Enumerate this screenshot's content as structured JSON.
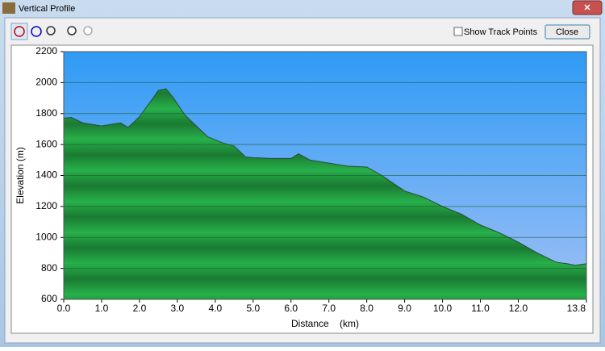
{
  "window": {
    "title": "Vertical Profile"
  },
  "toolbar": {
    "checkbox": "Show Track Points",
    "button": "Close"
  },
  "chart_data": {
    "type": "area",
    "xlabel": "Distance    (km)",
    "ylabel": "Elevation (m)",
    "x": [
      0,
      0.2,
      0.5,
      1.0,
      1.5,
      1.7,
      2.0,
      2.3,
      2.5,
      2.7,
      2.9,
      3.2,
      3.5,
      3.8,
      4.2,
      4.5,
      4.8,
      5.0,
      5.5,
      6.0,
      6.2,
      6.5,
      7.0,
      7.5,
      8.0,
      8.4,
      9.0,
      9.5,
      10.0,
      10.5,
      11.0,
      11.5,
      12.0,
      12.5,
      13.0,
      13.3,
      13.5,
      13.8
    ],
    "values": [
      1770,
      1775,
      1740,
      1720,
      1740,
      1710,
      1780,
      1880,
      1950,
      1960,
      1900,
      1790,
      1720,
      1650,
      1610,
      1590,
      1520,
      1515,
      1510,
      1510,
      1540,
      1500,
      1480,
      1460,
      1455,
      1400,
      1300,
      1260,
      1200,
      1150,
      1080,
      1030,
      970,
      900,
      840,
      830,
      820,
      830
    ],
    "color": "#1f9a3e",
    "xlim": [
      0,
      13.8
    ],
    "ylim": [
      600,
      2200
    ],
    "xticks": [
      {
        "value": 0,
        "label": "0.0"
      },
      {
        "value": 1,
        "label": "1.0"
      },
      {
        "value": 2,
        "label": "2.0"
      },
      {
        "value": 3,
        "label": "3.0"
      },
      {
        "value": 4,
        "label": "4.0"
      },
      {
        "value": 5,
        "label": "5.0"
      },
      {
        "value": 6,
        "label": "6.0"
      },
      {
        "value": 7,
        "label": "7.0"
      },
      {
        "value": 8,
        "label": "8.0"
      },
      {
        "value": 9,
        "label": "9.0"
      },
      {
        "value": 10,
        "label": "10.0"
      },
      {
        "value": 11,
        "label": "11.0"
      },
      {
        "value": 12,
        "label": "12.0"
      },
      13.8
    ],
    "yticks": [
      600,
      800,
      1000,
      1200,
      1400,
      1600,
      1800,
      2000,
      2200
    ],
    "grid": true
  }
}
